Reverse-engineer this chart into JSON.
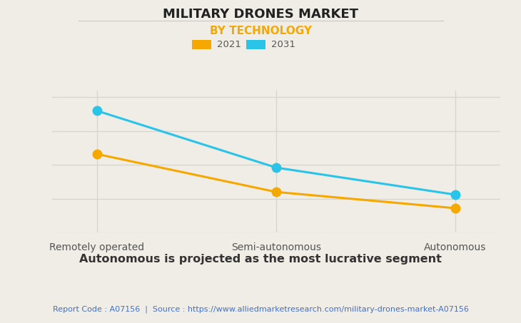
{
  "title": "MILITARY DRONES MARKET",
  "subtitle": "BY TECHNOLOGY",
  "categories": [
    "Remotely operated",
    "Semi-autonomous",
    "Autonomous"
  ],
  "series": [
    {
      "label": "2021",
      "color": "#F5A800",
      "values": [
        0.58,
        0.3,
        0.18
      ]
    },
    {
      "label": "2031",
      "color": "#29C4E8",
      "values": [
        0.9,
        0.48,
        0.28
      ]
    }
  ],
  "background_color": "#f0ece6",
  "plot_bg_color": "#f0ece6",
  "grid_color": "#d8d3cc",
  "title_color": "#222222",
  "subtitle_color": "#F5A800",
  "annotation": "Autonomous is projected as the most lucrative segment",
  "footer_text": "Report Code : A07156  |  Source : https://www.alliedmarketresearch.com/military-drones-market-A07156",
  "footer_color": "#4472C4",
  "annotation_color": "#333333",
  "ylim": [
    0.0,
    1.05
  ],
  "marker_size": 9,
  "line_width": 2.2
}
